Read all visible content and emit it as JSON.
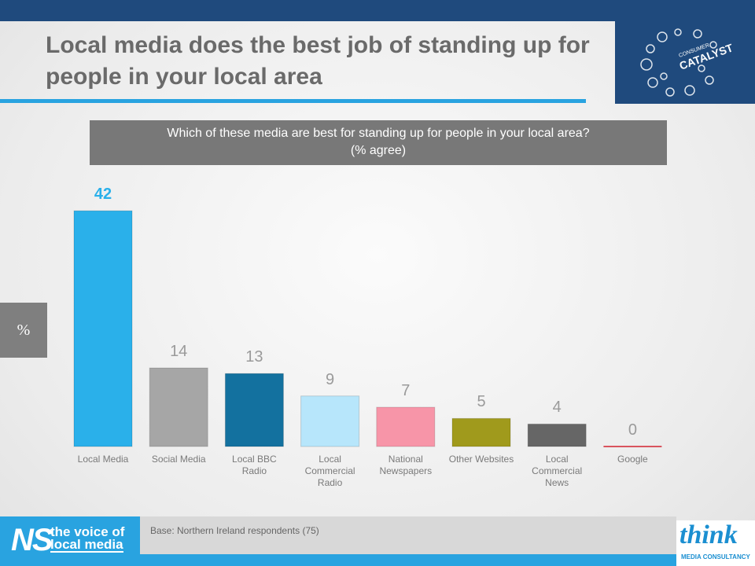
{
  "chart_data": {
    "type": "bar",
    "title": "Local media does the best job of standing up for people in your local area",
    "subtitle": [
      "Which of these media are best for standing up for people in your local area?",
      "(% agree)"
    ],
    "y_label": "%",
    "categories": [
      "Local Media",
      "Social Media",
      "Local BBC Radio",
      "Local Commercial Radio",
      "National Newspapers",
      "Other Websites",
      "Local Commercial News",
      "Google"
    ],
    "values": [
      42,
      14,
      13,
      9,
      7,
      5,
      4,
      0
    ],
    "colors": [
      "#2ab0ea",
      "#a6a6a6",
      "#13719f",
      "#b7e6fb",
      "#f795a8",
      "#a09a1c",
      "#666666",
      "#d9545e"
    ],
    "footnote": "Base: Northern Ireland respondents (75)"
  },
  "logos": {
    "ns": "NS",
    "ns_line1": "the voice of",
    "ns_line2": "local media",
    "think": "think",
    "think_sub": "MEDIA CONSULTANCY",
    "catalyst_top": "CONSUMER",
    "catalyst": "CATALYST"
  }
}
